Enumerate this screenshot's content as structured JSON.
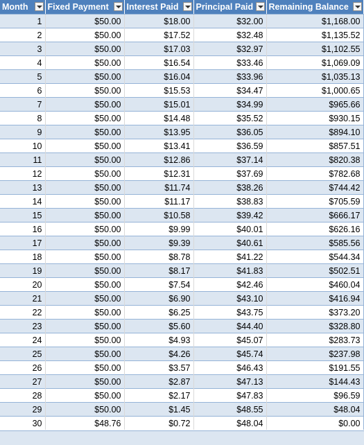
{
  "columns": [
    {
      "label": "Month"
    },
    {
      "label": "Fixed Payment"
    },
    {
      "label": "Interest Paid"
    },
    {
      "label": "Principal Paid"
    },
    {
      "label": "Remaining Balance"
    }
  ],
  "rows": [
    [
      "1",
      "$50.00",
      "$18.00",
      "$32.00",
      "$1,168.00"
    ],
    [
      "2",
      "$50.00",
      "$17.52",
      "$32.48",
      "$1,135.52"
    ],
    [
      "3",
      "$50.00",
      "$17.03",
      "$32.97",
      "$1,102.55"
    ],
    [
      "4",
      "$50.00",
      "$16.54",
      "$33.46",
      "$1,069.09"
    ],
    [
      "5",
      "$50.00",
      "$16.04",
      "$33.96",
      "$1,035.13"
    ],
    [
      "6",
      "$50.00",
      "$15.53",
      "$34.47",
      "$1,000.65"
    ],
    [
      "7",
      "$50.00",
      "$15.01",
      "$34.99",
      "$965.66"
    ],
    [
      "8",
      "$50.00",
      "$14.48",
      "$35.52",
      "$930.15"
    ],
    [
      "9",
      "$50.00",
      "$13.95",
      "$36.05",
      "$894.10"
    ],
    [
      "10",
      "$50.00",
      "$13.41",
      "$36.59",
      "$857.51"
    ],
    [
      "11",
      "$50.00",
      "$12.86",
      "$37.14",
      "$820.38"
    ],
    [
      "12",
      "$50.00",
      "$12.31",
      "$37.69",
      "$782.68"
    ],
    [
      "13",
      "$50.00",
      "$11.74",
      "$38.26",
      "$744.42"
    ],
    [
      "14",
      "$50.00",
      "$11.17",
      "$38.83",
      "$705.59"
    ],
    [
      "15",
      "$50.00",
      "$10.58",
      "$39.42",
      "$666.17"
    ],
    [
      "16",
      "$50.00",
      "$9.99",
      "$40.01",
      "$626.16"
    ],
    [
      "17",
      "$50.00",
      "$9.39",
      "$40.61",
      "$585.56"
    ],
    [
      "18",
      "$50.00",
      "$8.78",
      "$41.22",
      "$544.34"
    ],
    [
      "19",
      "$50.00",
      "$8.17",
      "$41.83",
      "$502.51"
    ],
    [
      "20",
      "$50.00",
      "$7.54",
      "$42.46",
      "$460.04"
    ],
    [
      "21",
      "$50.00",
      "$6.90",
      "$43.10",
      "$416.94"
    ],
    [
      "22",
      "$50.00",
      "$6.25",
      "$43.75",
      "$373.20"
    ],
    [
      "23",
      "$50.00",
      "$5.60",
      "$44.40",
      "$328.80"
    ],
    [
      "24",
      "$50.00",
      "$4.93",
      "$45.07",
      "$283.73"
    ],
    [
      "25",
      "$50.00",
      "$4.26",
      "$45.74",
      "$237.98"
    ],
    [
      "26",
      "$50.00",
      "$3.57",
      "$46.43",
      "$191.55"
    ],
    [
      "27",
      "$50.00",
      "$2.87",
      "$47.13",
      "$144.43"
    ],
    [
      "28",
      "$50.00",
      "$2.17",
      "$47.83",
      "$96.59"
    ],
    [
      "29",
      "$50.00",
      "$1.45",
      "$48.55",
      "$48.04"
    ],
    [
      "30",
      "$48.76",
      "$0.72",
      "$48.04",
      "$0.00"
    ]
  ],
  "colors": {
    "header_bg": "#4f81bd",
    "header_text": "#ffffff",
    "band_row": "#dce6f1",
    "plain_row": "#ffffff",
    "row_border": "#95b3d7"
  },
  "icons": {
    "filter_dropdown": "chevron-down-icon"
  }
}
